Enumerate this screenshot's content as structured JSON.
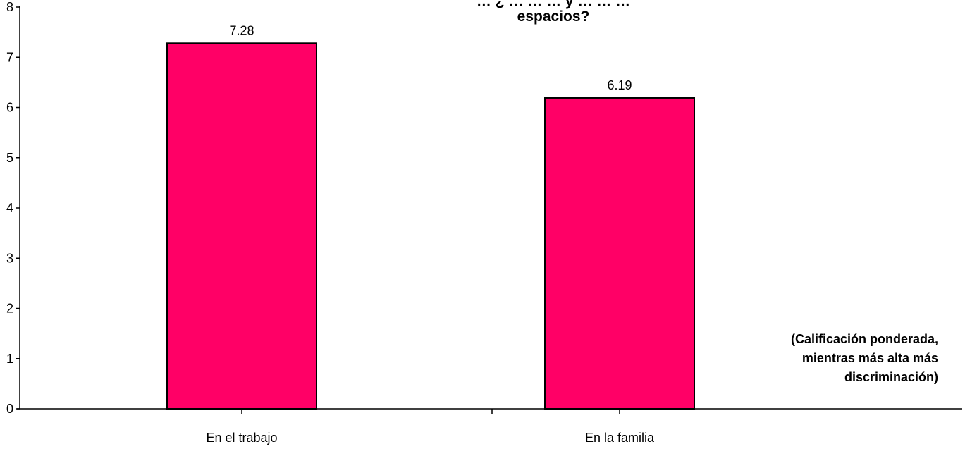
{
  "chart_data": {
    "type": "bar",
    "title_lines": [
      "… ¿ … … … y … … …",
      "espacios?"
    ],
    "categories": [
      "En el trabajo",
      "En la familia"
    ],
    "values": [
      7.28,
      6.19
    ],
    "value_labels": [
      "7.28",
      "6.19"
    ],
    "y_ticks": [
      "0",
      "1",
      "2",
      "3",
      "4",
      "5",
      "6",
      "7",
      "8"
    ],
    "ylim": [
      0,
      8
    ],
    "xlabel": "",
    "ylabel": "",
    "grid": false,
    "legend": "none",
    "annotation_lines": [
      "(Calificación ponderada,",
      "mientras más alta más",
      "discriminación)"
    ],
    "bar_color": "#FF0066",
    "bar_border_color": "#000000"
  }
}
